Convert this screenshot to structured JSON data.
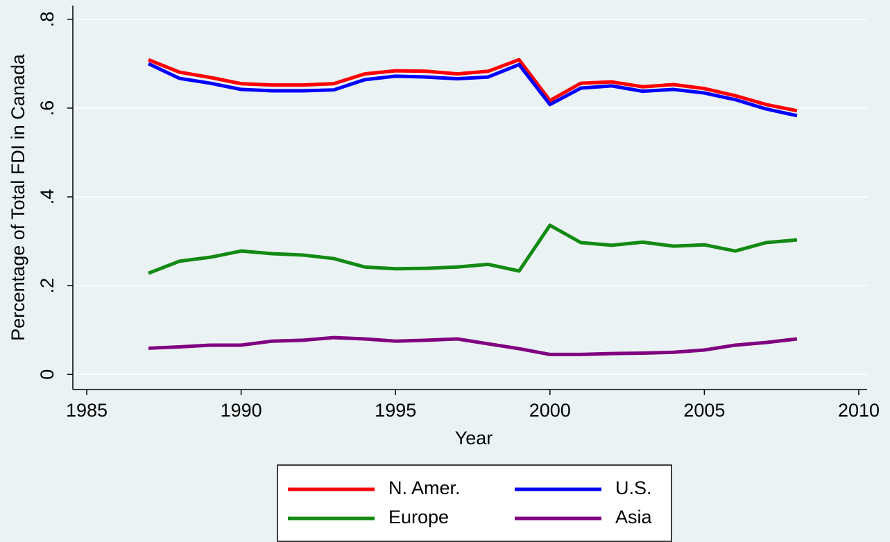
{
  "chart_data": {
    "type": "line",
    "x_label": "Year",
    "y_label": "Percentage of Total FDI in Canada",
    "x": [
      1987,
      1988,
      1989,
      1990,
      1991,
      1992,
      1993,
      1994,
      1995,
      1996,
      1997,
      1998,
      1999,
      2000,
      2001,
      2002,
      2003,
      2004,
      2005,
      2006,
      2007,
      2008
    ],
    "series": [
      {
        "name": "N. Amer.",
        "color": "#ff0000",
        "values": [
          0.709,
          0.681,
          0.669,
          0.655,
          0.652,
          0.652,
          0.655,
          0.677,
          0.684,
          0.683,
          0.677,
          0.683,
          0.709,
          0.617,
          0.656,
          0.659,
          0.648,
          0.653,
          0.644,
          0.628,
          0.608,
          0.594
        ]
      },
      {
        "name": "U.S.",
        "color": "#0000ff",
        "values": [
          0.7,
          0.667,
          0.656,
          0.642,
          0.639,
          0.639,
          0.641,
          0.664,
          0.672,
          0.67,
          0.666,
          0.67,
          0.698,
          0.608,
          0.645,
          0.65,
          0.638,
          0.642,
          0.634,
          0.619,
          0.598,
          0.583
        ]
      },
      {
        "name": "Europe",
        "color": "#138a13",
        "values": [
          0.228,
          0.255,
          0.264,
          0.278,
          0.272,
          0.269,
          0.261,
          0.242,
          0.238,
          0.239,
          0.242,
          0.248,
          0.233,
          0.336,
          0.297,
          0.291,
          0.298,
          0.289,
          0.292,
          0.278,
          0.297,
          0.303
        ]
      },
      {
        "name": "Asia",
        "color": "#800080",
        "values": [
          0.059,
          0.062,
          0.066,
          0.066,
          0.075,
          0.077,
          0.083,
          0.08,
          0.075,
          0.077,
          0.08,
          0.069,
          0.058,
          0.045,
          0.045,
          0.047,
          0.048,
          0.05,
          0.055,
          0.066,
          0.072,
          0.08
        ]
      }
    ],
    "xlim": [
      1984.55,
      2010.27
    ],
    "xticks": [
      1985,
      1990,
      1995,
      2000,
      2005,
      2010
    ],
    "ylim": [
      -0.034,
      0.831
    ],
    "yticks": [
      0,
      {
        "value": 0.2,
        "label": ".2"
      },
      {
        "value": 0.4,
        "label": ".4"
      },
      {
        "value": 0.6,
        "label": ".6"
      },
      {
        "value": 0.8,
        "label": ".8"
      }
    ],
    "grid": true,
    "legend": "bottom"
  }
}
